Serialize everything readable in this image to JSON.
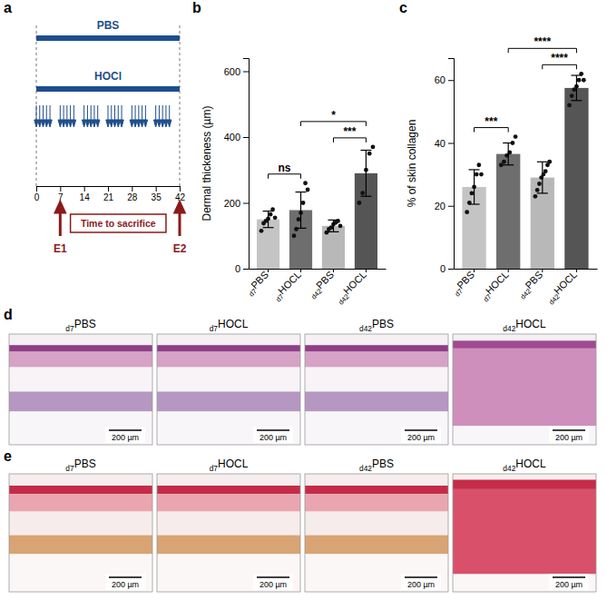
{
  "panel_labels": [
    "a",
    "b",
    "c",
    "d",
    "e"
  ],
  "timeline": {
    "groups": [
      "PBS",
      "HOCl"
    ],
    "xlim": [
      0,
      42
    ],
    "ticks": [
      0,
      7,
      14,
      21,
      28,
      35,
      42
    ],
    "injection_days": [
      0,
      1,
      2,
      3,
      4,
      7,
      8,
      9,
      10,
      11,
      14,
      15,
      16,
      17,
      18,
      21,
      22,
      23,
      24,
      25,
      28,
      29,
      30,
      31,
      32,
      35,
      36,
      37,
      38,
      39
    ],
    "endpoints": [
      {
        "day": 7,
        "label": "E1"
      },
      {
        "day": 42,
        "label": "E2"
      }
    ],
    "box_label": "Time to sacrifice"
  },
  "chart_data": [
    {
      "type": "bar",
      "y_label": "Dermal thickeness (µm)",
      "categories": [
        "d7PBS",
        "d7HOCL",
        "d42PBS",
        "d42HOCL"
      ],
      "values": [
        150,
        178,
        130,
        290
      ],
      "errors": [
        25,
        55,
        18,
        70
      ],
      "points": [
        [
          115,
          138,
          145,
          152,
          165,
          180,
          155
        ],
        [
          100,
          120,
          150,
          170,
          200,
          260,
          240
        ],
        [
          110,
          120,
          125,
          135,
          140,
          145,
          130
        ],
        [
          200,
          230,
          300,
          350,
          370
        ]
      ],
      "colors": [
        "#c4c4c4",
        "#6e6e6e",
        "#b8b8b8",
        "#555555"
      ],
      "ylim": [
        0,
        640
      ],
      "yticks": [
        0,
        200,
        400,
        600
      ],
      "annotations": [
        {
          "pair": [
            "d7PBS",
            "d7HOCL"
          ],
          "text": "ns"
        },
        {
          "pair": [
            "d42PBS",
            "d42HOCL"
          ],
          "text": "***"
        },
        {
          "pair": [
            "d7HOCL",
            "d42HOCL"
          ],
          "text": "*"
        }
      ]
    },
    {
      "type": "bar",
      "y_label": "% of skin collagen",
      "categories": [
        "d7PBS",
        "d7HOCL",
        "d42PBS",
        "d42HOCL"
      ],
      "values": [
        26,
        36.5,
        29,
        57.5
      ],
      "errors": [
        5.5,
        3.5,
        5,
        4
      ],
      "points": [
        [
          18,
          21,
          24,
          26,
          30,
          33,
          30
        ],
        [
          33,
          34,
          36,
          37,
          40,
          42
        ],
        [
          23,
          25,
          27,
          29,
          30,
          31,
          33,
          34
        ],
        [
          52,
          55,
          57,
          58,
          60,
          62,
          60
        ]
      ],
      "colors": [
        "#c4c4c4",
        "#6e6e6e",
        "#b8b8b8",
        "#555555"
      ],
      "ylim": [
        0,
        67
      ],
      "yticks": [
        0,
        20,
        40,
        60
      ],
      "annotations": [
        {
          "pair": [
            "d7PBS",
            "d7HOCL"
          ],
          "text": "***"
        },
        {
          "pair": [
            "d42PBS",
            "d42HOCL"
          ],
          "text": "****"
        },
        {
          "pair": [
            "d7HOCL",
            "d42HOCL"
          ],
          "text": "****"
        }
      ]
    }
  ],
  "histology": {
    "rows": [
      {
        "labels": [
          "d7PBS",
          "d7HOCL",
          "d42PBS",
          "d42HOCL"
        ]
      },
      {
        "labels": [
          "d7PBS",
          "d7HOCL",
          "d42PBS",
          "d42HOCL"
        ]
      }
    ],
    "scale_bar": "200 µm"
  }
}
